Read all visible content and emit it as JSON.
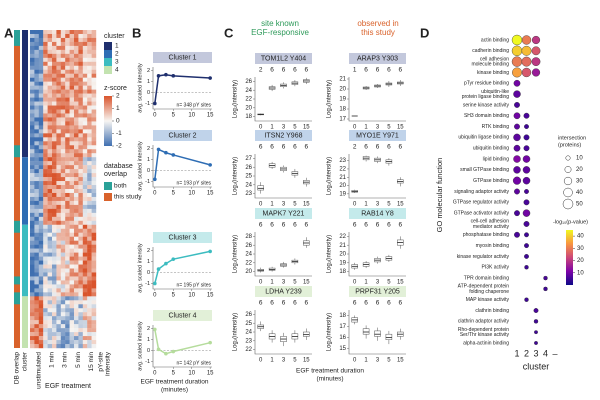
{
  "panels": [
    "A",
    "B",
    "C",
    "D"
  ],
  "headers": [
    {
      "lines": [
        "site known",
        "EGF-responsive"
      ],
      "color": "#2e9a5a"
    },
    {
      "lines": [
        "observed in",
        "this study"
      ],
      "color": "#d9622b"
    }
  ],
  "chart_data": [
    {
      "type": "heatmap",
      "columns": [
        "unstimulated",
        "1 min",
        "3 min",
        "5 min",
        "15 min"
      ],
      "column_group": "EGF treatment",
      "annotation_columns": [
        "DB overlap",
        "cluster"
      ],
      "value_label": [
        "pY-site",
        "intensity"
      ],
      "legends": {
        "cluster": {
          "title": "cluster",
          "names": [
            "1",
            "2",
            "3",
            "4"
          ],
          "colors": [
            "#1f2f6e",
            "#2e6db4",
            "#3cbcc0",
            "#c3e3b0"
          ]
        },
        "zscore": {
          "title": "z-score",
          "ticks": [
            2,
            1,
            0,
            -1,
            -2
          ],
          "colors": [
            "#d9542c",
            "#f7f5f2",
            "#3f6fb0"
          ]
        },
        "database": {
          "title": [
            "database",
            "overlap"
          ],
          "names": [
            "both",
            "this study"
          ],
          "colors": [
            "#2aa198",
            "#d9622b"
          ]
        }
      }
    },
    {
      "type": "line",
      "title": "Cluster 1",
      "x": [
        0,
        1,
        3,
        5,
        15
      ],
      "values": [
        -1.0,
        1.5,
        1.6,
        1.5,
        1.3
      ],
      "color": "#1f2f6e",
      "title_color": "#c3c8dc",
      "xlim": [
        -0.5,
        15.5
      ],
      "xticks": [
        0,
        5,
        10,
        15
      ],
      "ylim": [
        -1.5,
        2.3
      ],
      "yticks": [
        -1,
        0,
        1,
        2
      ],
      "ylabel": "avg. scaled intensity",
      "annotation": "n= 348 pY sites"
    },
    {
      "type": "line",
      "title": "Cluster 2",
      "x": [
        0,
        1,
        3,
        5,
        15
      ],
      "values": [
        -0.8,
        1.9,
        1.6,
        1.4,
        0.5
      ],
      "color": "#2e6db4",
      "title_color": "#c0d3ea",
      "xlim": [
        -0.5,
        15.5
      ],
      "xticks": [
        0,
        5,
        10,
        15
      ],
      "ylim": [
        -1.5,
        2.3
      ],
      "yticks": [
        -1,
        0,
        1,
        2
      ],
      "ylabel": "avg. scaled intensity",
      "annotation": "n= 193 pY sites"
    },
    {
      "type": "line",
      "title": "Cluster 3",
      "x": [
        0,
        1,
        3,
        5,
        15
      ],
      "values": [
        -1.0,
        0.3,
        0.8,
        1.2,
        1.9
      ],
      "color": "#3cbcc0",
      "title_color": "#c4eaeb",
      "xlim": [
        -0.5,
        15.5
      ],
      "xticks": [
        0,
        5,
        10,
        15
      ],
      "ylim": [
        -1.5,
        2.3
      ],
      "yticks": [
        -1,
        0,
        1,
        2
      ],
      "ylabel": "avg. scaled intensity",
      "annotation": "n= 195 pY sites"
    },
    {
      "type": "line",
      "title": "Cluster 4",
      "x": [
        0,
        1,
        3,
        5,
        15
      ],
      "values": [
        1.9,
        0.1,
        -0.3,
        -0.1,
        0.7
      ],
      "color": "#b5dc9c",
      "title_color": "#e2f0d8",
      "xlim": [
        -0.5,
        15.5
      ],
      "xticks": [
        0,
        5,
        10,
        15
      ],
      "ylim": [
        -1.5,
        2.3
      ],
      "yticks": [
        -1,
        0,
        1,
        2
      ],
      "ylabel": "avg. scaled intensity",
      "annotation": "n= 142 pY sites",
      "xlabel": [
        "EGF treatment duration",
        "(minutes)"
      ]
    },
    {
      "type": "box",
      "title": "TOM1L2 Y404",
      "categories": [
        "0",
        "1",
        "3",
        "5",
        "15"
      ],
      "counts": [
        2,
        6,
        6,
        6,
        6
      ],
      "boxes": [
        [
          18.3,
          18.4,
          18.5,
          18.6,
          18.7
        ],
        [
          23.8,
          24.2,
          24.5,
          24.8,
          25.2
        ],
        [
          24.4,
          24.8,
          25.1,
          25.4,
          25.8
        ],
        [
          24.9,
          25.3,
          25.6,
          25.9,
          26.3
        ],
        [
          25.4,
          25.8,
          26.1,
          26.4,
          26.8
        ]
      ],
      "ylim": [
        17,
        27
      ],
      "yticks": [
        18,
        20,
        22,
        24,
        26
      ],
      "ylabel": "Log₂(intensity)",
      "title_color": "#c3c8dc"
    },
    {
      "type": "box",
      "title": "ARAP3 Y303",
      "categories": [
        "0",
        "1",
        "3",
        "5",
        "15"
      ],
      "counts": [
        1,
        6,
        6,
        6,
        6
      ],
      "boxes": [
        [
          17.3,
          17.3,
          17.3,
          17.3,
          17.3
        ],
        [
          19.9,
          20.0,
          20.1,
          20.2,
          20.3
        ],
        [
          20.1,
          20.2,
          20.3,
          20.4,
          20.5
        ],
        [
          20.2,
          20.4,
          20.5,
          20.6,
          20.8
        ],
        [
          20.3,
          20.5,
          20.6,
          20.7,
          20.9
        ]
      ],
      "ylim": [
        16.8,
        21.2
      ],
      "yticks": [
        17,
        18,
        19,
        20,
        21
      ],
      "ylabel": "Log₂(intensity)",
      "title_color": "#c3c8dc"
    },
    {
      "type": "box",
      "title": "ITSN2 Y968",
      "categories": [
        "0",
        "1",
        "3",
        "5",
        "15"
      ],
      "counts": [
        6,
        6,
        6,
        6,
        6
      ],
      "boxes": [
        [
          23.0,
          23.4,
          23.6,
          23.9,
          24.3
        ],
        [
          25.8,
          26.0,
          26.2,
          26.4,
          26.6
        ],
        [
          25.4,
          25.6,
          25.8,
          26.0,
          26.2
        ],
        [
          24.8,
          25.1,
          25.3,
          25.5,
          25.8
        ],
        [
          23.8,
          24.1,
          24.3,
          24.5,
          24.8
        ]
      ],
      "ylim": [
        22.5,
        27.5
      ],
      "yticks": [
        23,
        24,
        25,
        26,
        27
      ],
      "ylabel": "Log₂(intensity)",
      "title_color": "#c0d3ea"
    },
    {
      "type": "box",
      "title": "MYO1E Y971",
      "categories": [
        "0",
        "1",
        "3",
        "5",
        "15"
      ],
      "counts": [
        2,
        6,
        6,
        6,
        6
      ],
      "boxes": [
        [
          19.1,
          19.2,
          19.3,
          19.4,
          19.5
        ],
        [
          22.9,
          23.1,
          23.3,
          23.5,
          23.6
        ],
        [
          22.7,
          22.9,
          23.1,
          23.3,
          23.5
        ],
        [
          22.4,
          22.7,
          22.9,
          23.1,
          23.3
        ],
        [
          19.9,
          20.3,
          20.5,
          20.7,
          21.0
        ]
      ],
      "ylim": [
        18.5,
        23.8
      ],
      "yticks": [
        19,
        20,
        21,
        22,
        23
      ],
      "ylabel": "Log₂(intensity)",
      "title_color": "#c0d3ea"
    },
    {
      "type": "box",
      "title": "MAPK7 Y221",
      "categories": [
        "0",
        "1",
        "3",
        "5",
        "15"
      ],
      "counts": [
        6,
        6,
        6,
        6,
        6
      ],
      "boxes": [
        [
          19.8,
          20.1,
          20.3,
          20.5,
          20.9
        ],
        [
          20.0,
          20.3,
          20.5,
          20.8,
          21.1
        ],
        [
          20.9,
          21.2,
          21.5,
          21.8,
          22.2
        ],
        [
          21.6,
          22.0,
          22.3,
          22.6,
          23.0
        ],
        [
          25.4,
          26.0,
          26.5,
          27.0,
          27.8
        ]
      ],
      "ylim": [
        19,
        29
      ],
      "yticks": [
        20,
        22,
        24,
        26,
        28
      ],
      "ylabel": "Log₂(intensity)",
      "title_color": "#c4eaeb"
    },
    {
      "type": "box",
      "title": "RAB14 Y8",
      "categories": [
        "0",
        "1",
        "3",
        "5",
        "15"
      ],
      "counts": [
        6,
        6,
        6,
        6,
        6
      ],
      "boxes": [
        [
          18.2,
          18.4,
          18.6,
          18.8,
          19.0
        ],
        [
          18.4,
          18.6,
          18.8,
          19.0,
          19.2
        ],
        [
          18.9,
          19.1,
          19.3,
          19.5,
          19.7
        ],
        [
          19.1,
          19.3,
          19.5,
          19.7,
          19.9
        ],
        [
          20.6,
          21.0,
          21.3,
          21.6,
          22.0
        ]
      ],
      "ylim": [
        17.5,
        22.5
      ],
      "yticks": [
        18,
        19,
        20,
        21,
        22
      ],
      "ylabel": "Log₂(intensity)",
      "title_color": "#c4eaeb"
    },
    {
      "type": "box",
      "title": "LDHA Y239",
      "categories": [
        "0",
        "1",
        "3",
        "5",
        "15"
      ],
      "counts": [
        6,
        6,
        6,
        6,
        6
      ],
      "boxes": [
        [
          24.1,
          24.4,
          24.6,
          24.8,
          25.2
        ],
        [
          22.8,
          23.2,
          23.5,
          23.8,
          24.2
        ],
        [
          22.4,
          22.9,
          23.2,
          23.5,
          23.9
        ],
        [
          22.8,
          23.2,
          23.5,
          23.8,
          24.2
        ],
        [
          23.1,
          23.5,
          23.7,
          24.0,
          24.4
        ]
      ],
      "ylim": [
        21.5,
        26.5
      ],
      "yticks": [
        22,
        23,
        24,
        25,
        26
      ],
      "ylabel": "Log₂(intensity)",
      "title_color": "#e2f0d8",
      "xlabel": [
        "EGF treatment duration",
        "(minutes)"
      ]
    },
    {
      "type": "box",
      "title": "PRPF31 Y205",
      "categories": [
        "0",
        "1",
        "3",
        "5",
        "15"
      ],
      "counts": [
        6,
        6,
        6,
        6,
        6
      ],
      "boxes": [
        [
          17.2,
          17.4,
          17.6,
          17.8,
          18.0
        ],
        [
          15.9,
          16.3,
          16.5,
          16.8,
          17.1
        ],
        [
          15.7,
          16.1,
          16.3,
          16.6,
          16.9
        ],
        [
          15.4,
          15.8,
          16.0,
          16.3,
          16.6
        ],
        [
          15.8,
          16.1,
          16.3,
          16.5,
          16.8
        ]
      ],
      "ylim": [
        14.5,
        18.5
      ],
      "yticks": [
        15,
        16,
        17,
        18
      ],
      "ylabel": "Log₂(intensity)",
      "title_color": "#e2f0d8"
    },
    {
      "type": "dot",
      "categories": [
        [
          "actin binding"
        ],
        [
          "cadherin binding"
        ],
        [
          "cell adhesion",
          "molecule binding"
        ],
        [
          "kinase binding"
        ],
        [
          "pTyr residue binding"
        ],
        [
          "ubiquitin-like",
          "protein ligase binding"
        ],
        [
          "serine kinase activity"
        ],
        [
          "SH3 domain binding"
        ],
        [
          "RTK binding"
        ],
        [
          "ubiquitin ligase binding"
        ],
        [
          "ubiquitin binding"
        ],
        [
          "lipid binding"
        ],
        [
          "small GTPase binding"
        ],
        [
          "GTPase binding"
        ],
        [
          "signaling adaptor activity"
        ],
        [
          "GTPase regulator activity"
        ],
        [
          "GTPase activator activity"
        ],
        [
          "cell-cell adhesion",
          "mediator activity"
        ],
        [
          "phosphatase binding"
        ],
        [
          "myosin binding"
        ],
        [
          "kinase regulator activity"
        ],
        [
          "PI3K activity"
        ],
        [
          "TPR domain binding"
        ],
        [
          "ATP-dependent protein",
          "folding chaperone"
        ],
        [
          "MAP kinase activity"
        ],
        [
          "clathrin binding"
        ],
        [
          "clathrin adaptor activity"
        ],
        [
          "Rho-dependent protein",
          "Ser/Thr kinase activity"
        ],
        [
          "alpha-actinin binding"
        ]
      ],
      "x_categories": [
        "1",
        "2",
        "3",
        "4",
        "–"
      ],
      "series": [
        {
          "sizes": [
            50,
            50,
            50,
            45,
            20,
            25,
            15,
            20,
            15,
            25,
            20,
            25,
            25,
            30,
            15,
            null,
            15,
            null,
            15,
            null,
            null,
            null,
            null,
            null,
            null,
            null,
            null,
            null,
            null
          ],
          "pvalues": [
            45,
            40,
            30,
            35,
            10,
            8,
            6,
            10,
            8,
            8,
            8,
            12,
            8,
            10,
            8,
            null,
            6,
            null,
            6,
            null,
            null,
            null,
            null,
            null,
            null,
            null,
            null,
            null,
            null
          ]
        },
        {
          "sizes": [
            40,
            45,
            45,
            40,
            null,
            null,
            null,
            15,
            10,
            15,
            15,
            25,
            25,
            25,
            10,
            15,
            25,
            15,
            10,
            10,
            10,
            8,
            null,
            null,
            8,
            null,
            null,
            null,
            null
          ],
          "pvalues": [
            30,
            38,
            28,
            25,
            null,
            null,
            null,
            6,
            5,
            5,
            6,
            10,
            8,
            8,
            6,
            6,
            10,
            6,
            5,
            5,
            5,
            5,
            null,
            null,
            5,
            null,
            null,
            null,
            null
          ]
        },
        {
          "sizes": [
            30,
            35,
            35,
            30,
            null,
            null,
            null,
            null,
            null,
            null,
            null,
            null,
            null,
            null,
            null,
            null,
            null,
            null,
            null,
            null,
            null,
            null,
            null,
            null,
            null,
            10,
            8,
            6,
            6
          ],
          "pvalues": [
            20,
            25,
            20,
            15,
            null,
            null,
            null,
            null,
            null,
            null,
            null,
            null,
            null,
            null,
            null,
            null,
            null,
            null,
            null,
            null,
            null,
            null,
            null,
            null,
            null,
            6,
            5,
            5,
            5
          ]
        },
        {
          "sizes": [
            null,
            null,
            null,
            null,
            null,
            null,
            null,
            null,
            null,
            null,
            null,
            null,
            null,
            null,
            null,
            null,
            null,
            null,
            null,
            null,
            null,
            null,
            8,
            8,
            null,
            null,
            null,
            null,
            null
          ],
          "pvalues": [
            null,
            null,
            null,
            null,
            null,
            null,
            null,
            null,
            null,
            null,
            null,
            null,
            null,
            null,
            null,
            null,
            null,
            null,
            null,
            null,
            null,
            null,
            6,
            5,
            null,
            null,
            null,
            null,
            null
          ]
        }
      ],
      "xlabel": "cluster",
      "ylabel": "GO molecular function",
      "size_legend": {
        "title": [
          "intersection",
          "(proteins)"
        ],
        "values": [
          10,
          20,
          30,
          40,
          50
        ],
        "max": 50
      },
      "color_legend": {
        "title": "-log₁₀(p-value)",
        "ticks": [
          10,
          20,
          30,
          40
        ],
        "clim": [
          0,
          45
        ],
        "colors": [
          "#0d0887",
          "#7e03a8",
          "#cc4778",
          "#f89540",
          "#f0f921"
        ]
      }
    }
  ]
}
